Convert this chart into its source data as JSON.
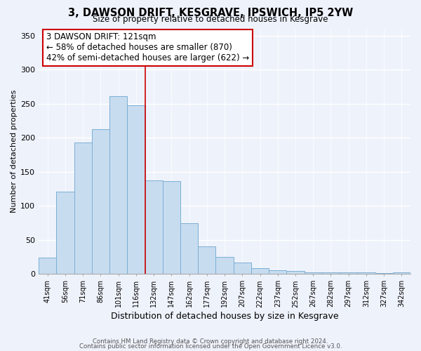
{
  "title": "3, DAWSON DRIFT, KESGRAVE, IPSWICH, IP5 2YW",
  "subtitle": "Size of property relative to detached houses in Kesgrave",
  "xlabel": "Distribution of detached houses by size in Kesgrave",
  "ylabel": "Number of detached properties",
  "bar_labels": [
    "41sqm",
    "56sqm",
    "71sqm",
    "86sqm",
    "101sqm",
    "116sqm",
    "132sqm",
    "147sqm",
    "162sqm",
    "177sqm",
    "192sqm",
    "207sqm",
    "222sqm",
    "237sqm",
    "252sqm",
    "267sqm",
    "282sqm",
    "297sqm",
    "312sqm",
    "327sqm",
    "342sqm"
  ],
  "bar_values": [
    24,
    121,
    193,
    213,
    261,
    248,
    137,
    136,
    75,
    41,
    25,
    17,
    9,
    6,
    5,
    3,
    3,
    2,
    2,
    1,
    2
  ],
  "bar_color": "#c8dcf0",
  "bar_edge_color": "#7bafd4",
  "vline_x": 5.5,
  "vline_color": "#cc0000",
  "annotation_title": "3 DAWSON DRIFT: 121sqm",
  "annotation_line1": "← 58% of detached houses are smaller (870)",
  "annotation_line2": "42% of semi-detached houses are larger (622) →",
  "annotation_box_color": "#ffffff",
  "annotation_box_edge": "#cc0000",
  "ylim": [
    0,
    360
  ],
  "yticks": [
    0,
    50,
    100,
    150,
    200,
    250,
    300,
    350
  ],
  "footer1": "Contains HM Land Registry data © Crown copyright and database right 2024.",
  "footer2": "Contains public sector information licensed under the Open Government Licence v3.0.",
  "bg_color": "#eef2fb"
}
